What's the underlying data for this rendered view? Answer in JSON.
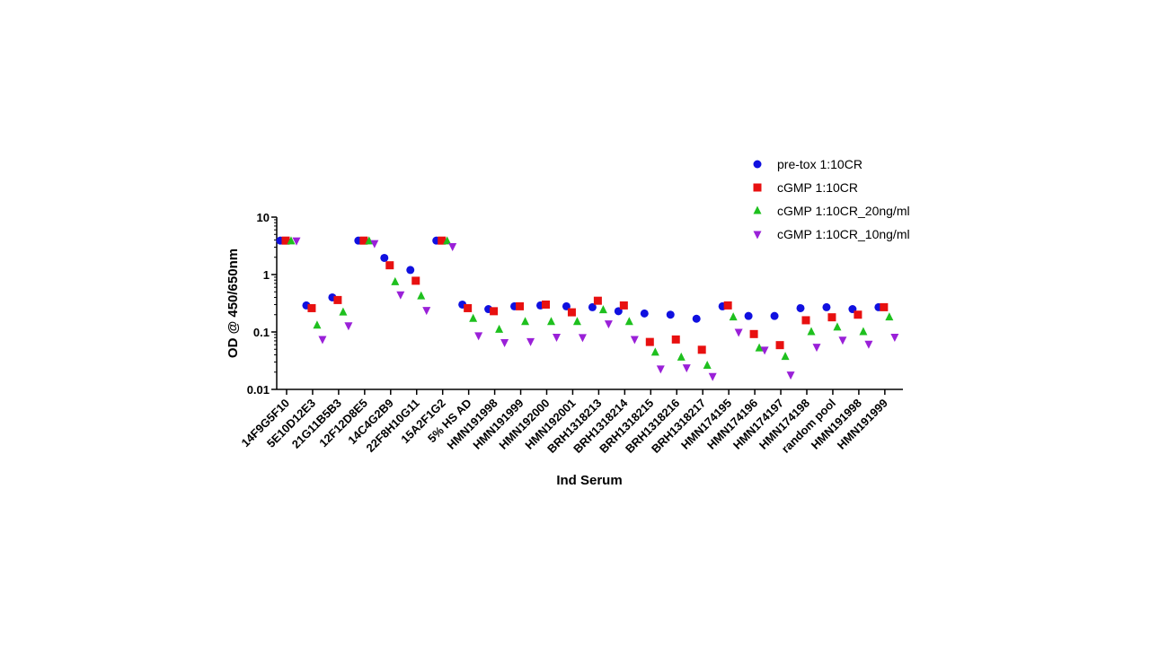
{
  "chart_data": {
    "type": "scatter",
    "title": "",
    "xlabel": "Ind Serum",
    "ylabel": "OD @ 450/650nm",
    "yscale": "log",
    "ylim": [
      0.01,
      10
    ],
    "yticks": [
      {
        "value": 0.01,
        "label": "0.01"
      },
      {
        "value": 0.1,
        "label": "0.1"
      },
      {
        "value": 1,
        "label": "1"
      },
      {
        "value": 10,
        "label": "10"
      }
    ],
    "legend_position": "top-right",
    "grid": false,
    "categories": [
      "14F9G5F10",
      "5E10D12E3",
      "21G11B5B3",
      "12F12D8E5",
      "14C4G2B9",
      "22F8H10G11",
      "15A2F1G2",
      "5% HS AD",
      "HMN191998",
      "HMN191999",
      "HMN192000",
      "HMN192001",
      "BRH1318213",
      "BRH1318214",
      "BRH1318215",
      "BRH1318216",
      "BRH1318217",
      "HMN174195",
      "HMN174196",
      "HMN174197",
      "HMN174198",
      "random pool",
      "HMN191998",
      "HMN191999"
    ],
    "series": [
      {
        "name": "pre-tox 1:10CR",
        "color": "#1010e0",
        "marker": "circle",
        "values": [
          3.9,
          0.29,
          0.4,
          3.9,
          1.95,
          1.2,
          3.9,
          0.3,
          0.25,
          0.28,
          0.29,
          0.28,
          0.27,
          0.23,
          0.21,
          0.2,
          0.17,
          0.28,
          0.19,
          0.19,
          0.26,
          0.27,
          0.25,
          0.27
        ]
      },
      {
        "name": "cGMP 1:10CR",
        "color": "#e81010",
        "marker": "square",
        "values": [
          3.9,
          0.26,
          0.36,
          3.9,
          1.45,
          0.78,
          3.9,
          0.26,
          0.23,
          0.28,
          0.3,
          0.22,
          0.35,
          0.29,
          0.067,
          0.074,
          0.049,
          0.29,
          0.092,
          0.059,
          0.16,
          0.18,
          0.2,
          0.27
        ]
      },
      {
        "name": "cGMP 1:10CR_20ng/ml",
        "color": "#1ec01e",
        "marker": "triangle-up",
        "values": [
          3.8,
          0.13,
          0.22,
          3.8,
          0.74,
          0.42,
          3.8,
          0.17,
          0.11,
          0.15,
          0.15,
          0.15,
          0.24,
          0.15,
          0.044,
          0.036,
          0.026,
          0.18,
          0.052,
          0.037,
          0.1,
          0.12,
          0.1,
          0.18
        ]
      },
      {
        "name": "cGMP 1:10CR_10ng/ml",
        "color": "#9a20d8",
        "marker": "triangle-down",
        "values": [
          3.9,
          0.075,
          0.13,
          3.5,
          0.45,
          0.24,
          3.1,
          0.087,
          0.066,
          0.069,
          0.082,
          0.081,
          0.14,
          0.075,
          0.023,
          0.024,
          0.017,
          0.1,
          0.049,
          0.018,
          0.055,
          0.073,
          0.062,
          0.082
        ]
      }
    ]
  }
}
